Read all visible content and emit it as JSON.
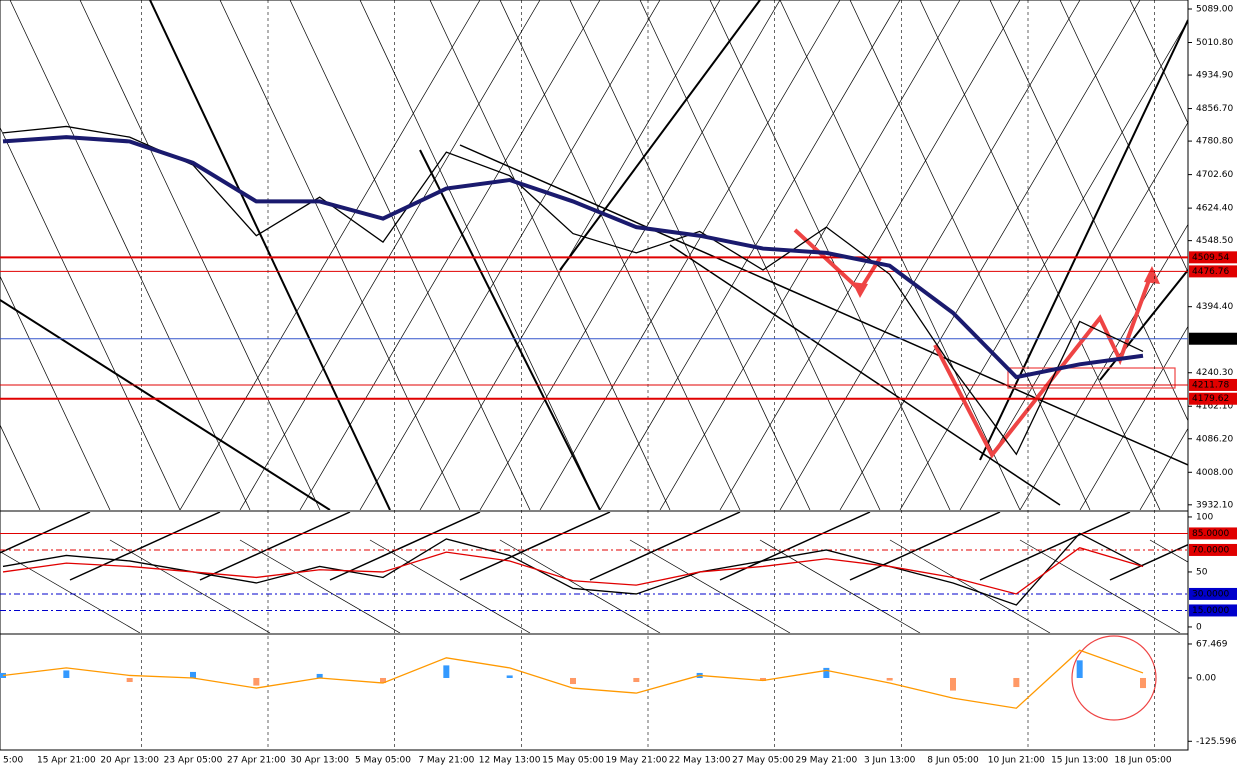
{
  "chart_data": [
    {
      "type": "line",
      "categories": [
        "5:00",
        "15 Apr 21:00",
        "20 Apr 13:00",
        "23 Apr 05:00",
        "27 Apr 21:00",
        "30 Apr 13:00",
        "5 May 05:00",
        "7 May 21:00",
        "12 May 13:00",
        "15 May 05:00",
        "19 May 21:00",
        "22 May 13:00",
        "27 May 05:00",
        "29 May 21:00",
        "3 Jun 13:00",
        "8 Jun 05:00",
        "10 Jun 21:00",
        "15 Jun 13:00",
        "18 Jun 05:00"
      ],
      "series": [
        {
          "color": "#000000",
          "values": [
            4800,
            4815,
            4790,
            4725,
            4560,
            4650,
            4545,
            4755,
            4700,
            4565,
            4520,
            4570,
            4480,
            4580,
            4470,
            4250,
            4050,
            4360,
            4290
          ]
        },
        {
          "color": "#1a1a6e",
          "values": [
            4780,
            4790,
            4780,
            4730,
            4640,
            4640,
            4600,
            4670,
            4690,
            4640,
            4580,
            4560,
            4530,
            4520,
            4490,
            4380,
            4230,
            4260,
            4280
          ]
        }
      ],
      "ylim": [
        3920,
        5110
      ],
      "yticks": [
        {
          "value": 5089,
          "label": "5089.00"
        },
        {
          "value": 5010.8,
          "label": "5010.80"
        },
        {
          "value": 4934.9,
          "label": "4934.90"
        },
        {
          "value": 4856.7,
          "label": "4856.70"
        },
        {
          "value": 4780.8,
          "label": "4780.80"
        },
        {
          "value": 4702.6,
          "label": "4702.60"
        },
        {
          "value": 4624.4,
          "label": "4624.40"
        },
        {
          "value": 4548.5,
          "label": "4548.50"
        },
        {
          "value": 4394.4,
          "label": "4394.40"
        },
        {
          "value": 4240.3,
          "label": "4240.30"
        },
        {
          "value": 4162.1,
          "label": "4162.10"
        },
        {
          "value": 4086.2,
          "label": "4086.20"
        },
        {
          "value": 4008,
          "label": "4008.00"
        },
        {
          "value": 3932.1,
          "label": "3932.10"
        }
      ],
      "levels": [
        {
          "value": 4509.54,
          "color": "#e00000"
        },
        {
          "value": 4476.76,
          "color": "#e00000"
        },
        {
          "value": 4319.64,
          "color": "#000000"
        },
        {
          "value": 4211.78,
          "color": "#e00000"
        },
        {
          "value": 4179.62,
          "color": "#e00000"
        }
      ]
    },
    {
      "type": "line",
      "series": [
        {
          "color": "#000000",
          "values": [
            55,
            65,
            60,
            50,
            40,
            55,
            45,
            80,
            65,
            35,
            30,
            50,
            60,
            70,
            55,
            40,
            20,
            85,
            55
          ]
        },
        {
          "color": "#e00000",
          "values": [
            50,
            58,
            55,
            50,
            45,
            52,
            50,
            68,
            60,
            42,
            38,
            50,
            55,
            62,
            55,
            45,
            30,
            72,
            55
          ]
        }
      ],
      "ylim": [
        -5.5,
        104.5
      ],
      "yticks": [
        100,
        50,
        0
      ],
      "levels": [
        {
          "value": 85,
          "label": "85.0000",
          "color": "#e00000"
        },
        {
          "value": 70,
          "label": "70.0000",
          "color": "#e00000"
        },
        {
          "value": 30,
          "label": "30.0000",
          "color": "#0000cc"
        },
        {
          "value": 15,
          "label": "15.0000",
          "color": "#0000cc"
        }
      ]
    },
    {
      "type": "bar",
      "values": [
        10,
        15,
        -8,
        12,
        -15,
        8,
        -10,
        25,
        5,
        -12,
        -8,
        10,
        -6,
        20,
        -5,
        -25,
        -18,
        35,
        -20
      ],
      "colors": [
        "#3399ff",
        "#ff9966"
      ],
      "series": [
        {
          "color": "#ff9900",
          "values": [
            5,
            20,
            5,
            0,
            -20,
            0,
            -10,
            40,
            20,
            -20,
            -30,
            5,
            -5,
            15,
            -10,
            -40,
            -60,
            55,
            10
          ]
        }
      ],
      "ylim": [
        -142.9,
        83.3
      ],
      "yticks": [
        67.469,
        {
          "value": 0,
          "label": "0.00"
        },
        -125.5969
      ]
    }
  ]
}
